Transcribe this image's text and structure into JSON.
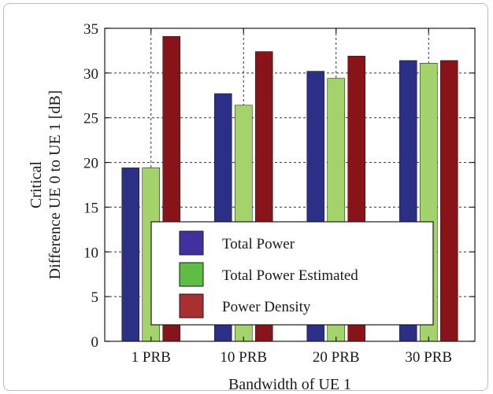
{
  "colors": {
    "total_power": "#2b2f86",
    "total_power_estimated": "#a5d36b",
    "power_density": "#881318",
    "legend_total_power": "#4030a0",
    "legend_total_power_estimated": "#5ebd44",
    "legend_power_density": "#a83030"
  },
  "chart_data": {
    "type": "bar",
    "title": "",
    "categories": [
      "1 PRB",
      "10 PRB",
      "20 PRB",
      "30 PRB"
    ],
    "series": [
      {
        "name": "Total Power",
        "values": [
          19.4,
          27.7,
          30.2,
          31.4
        ]
      },
      {
        "name": "Total Power Estimated",
        "values": [
          19.4,
          26.4,
          29.4,
          31.1
        ]
      },
      {
        "name": "Power Density",
        "values": [
          34.1,
          32.4,
          31.9,
          31.4
        ]
      }
    ],
    "xlabel": "Bandwidth of UE 1",
    "ylabel_lines": [
      "Critical",
      "Difference UE 0 to UE 1 [dB]"
    ],
    "ylim": [
      0,
      35
    ],
    "yticks": [
      0,
      5,
      10,
      15,
      20,
      25,
      30,
      35
    ],
    "grid": true,
    "legend_position": "bottom-center"
  }
}
